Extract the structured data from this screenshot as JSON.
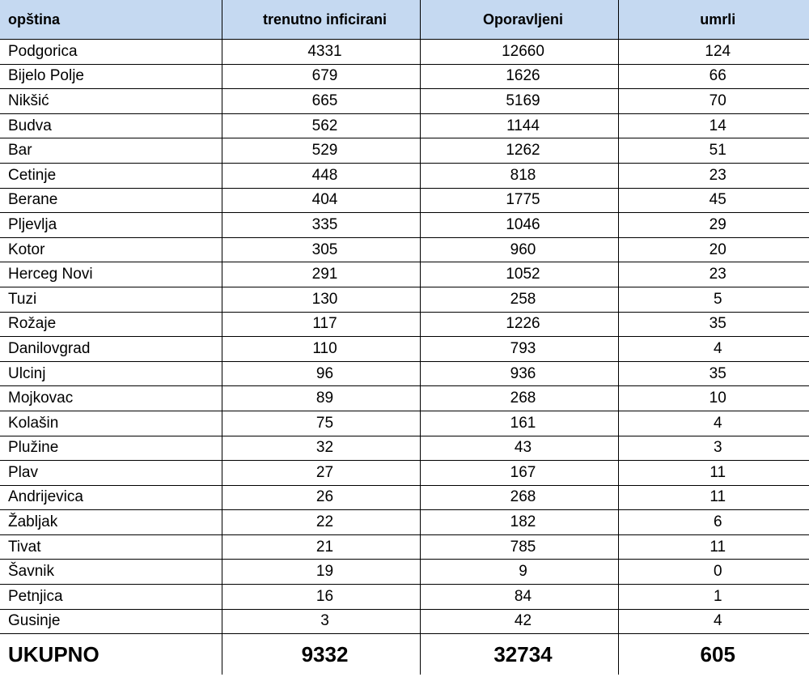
{
  "table": {
    "header": [
      "opština",
      "trenutno inficirani",
      "Oporavljeni",
      "umrli"
    ],
    "rows": [
      [
        "Podgorica",
        4331,
        12660,
        124
      ],
      [
        "Bijelo Polje",
        679,
        1626,
        66
      ],
      [
        "Nikšić",
        665,
        5169,
        70
      ],
      [
        "Budva",
        562,
        1144,
        14
      ],
      [
        "Bar",
        529,
        1262,
        51
      ],
      [
        "Cetinje",
        448,
        818,
        23
      ],
      [
        "Berane",
        404,
        1775,
        45
      ],
      [
        "Pljevlja",
        335,
        1046,
        29
      ],
      [
        "Kotor",
        305,
        960,
        20
      ],
      [
        "Herceg Novi",
        291,
        1052,
        23
      ],
      [
        "Tuzi",
        130,
        258,
        5
      ],
      [
        "Rožaje",
        117,
        1226,
        35
      ],
      [
        "Danilovgrad",
        110,
        793,
        4
      ],
      [
        "Ulcinj",
        96,
        936,
        35
      ],
      [
        "Mojkovac",
        89,
        268,
        10
      ],
      [
        "Kolašin",
        75,
        161,
        4
      ],
      [
        "Plužine",
        32,
        43,
        3
      ],
      [
        "Plav",
        27,
        167,
        11
      ],
      [
        "Andrijevica",
        26,
        268,
        11
      ],
      [
        "Žabljak",
        22,
        182,
        6
      ],
      [
        "Tivat",
        21,
        785,
        11
      ],
      [
        "Šavnik",
        19,
        9,
        0
      ],
      [
        "Petnjica",
        16,
        84,
        1
      ],
      [
        "Gusinje",
        3,
        42,
        4
      ]
    ],
    "total": [
      "UKUPNO",
      9332,
      32734,
      605
    ]
  }
}
